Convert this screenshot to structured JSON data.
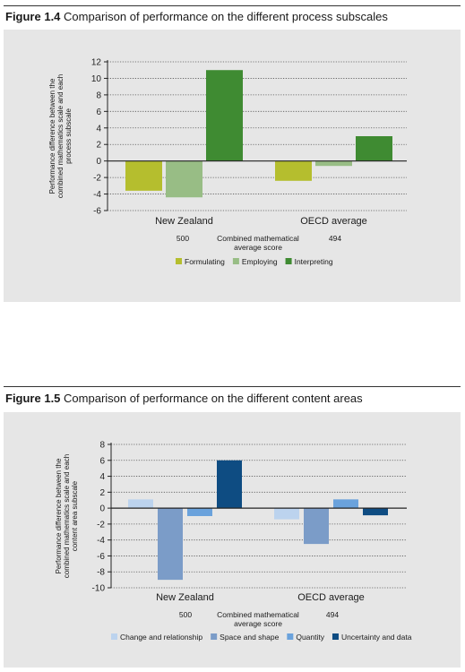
{
  "figures": [
    {
      "number": "Figure 1.4",
      "caption": "Comparison of performance on the different process subscales",
      "score_label": "Combined mathematical average score",
      "chart_data": {
        "type": "bar",
        "categories": [
          "New Zealand",
          "OECD average"
        ],
        "category_scores": [
          "500",
          "494"
        ],
        "series": [
          {
            "name": "Formulating",
            "color": "#b5be2e",
            "values": [
              -3.6,
              -2.4
            ]
          },
          {
            "name": "Employing",
            "color": "#98bd85",
            "values": [
              -4.4,
              -0.6
            ]
          },
          {
            "name": "Interpreting",
            "color": "#3f8b32",
            "values": [
              11,
              3
            ]
          }
        ],
        "ylabel": "Performance difference between the combined mathematics scale and each process subscale",
        "ylim": [
          -6,
          12
        ],
        "yticks": [
          -6,
          -4,
          -2,
          0,
          2,
          4,
          6,
          8,
          10,
          12
        ],
        "grid": true,
        "legend": "bottom"
      }
    },
    {
      "number": "Figure 1.5",
      "caption": "Comparison of performance on the different content areas",
      "score_label": "Combined mathematical average score",
      "chart_data": {
        "type": "bar",
        "categories": [
          "New Zealand",
          "OECD average"
        ],
        "category_scores": [
          "500",
          "494"
        ],
        "series": [
          {
            "name": "Change and relationship",
            "color": "#bcd3ee",
            "values": [
              1.1,
              -1.4
            ]
          },
          {
            "name": "Space and shape",
            "color": "#7b9cc8",
            "values": [
              -9,
              -4.5
            ]
          },
          {
            "name": "Quantity",
            "color": "#6aa2dc",
            "values": [
              -1,
              1.1
            ]
          },
          {
            "name": "Uncertainty and data",
            "color": "#0e4c82",
            "values": [
              6,
              -0.9
            ]
          }
        ],
        "ylabel": "Performance difference between the combined mathematics scale and each content area subscale",
        "ylim": [
          -10,
          8
        ],
        "yticks": [
          -10,
          -8,
          -6,
          -4,
          -2,
          0,
          2,
          4,
          6,
          8
        ],
        "grid": true,
        "legend": "bottom"
      }
    }
  ]
}
